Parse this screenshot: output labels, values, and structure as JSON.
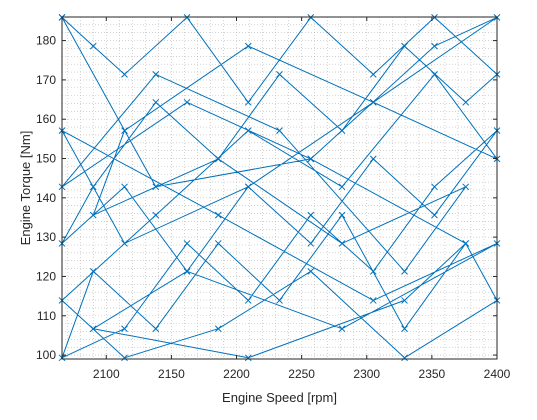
{
  "chart_data": {
    "type": "line",
    "xlabel": "Engine Speed [rpm]",
    "ylabel": "Engine Torque [Nm]",
    "xlim": [
      2066,
      2400
    ],
    "ylim": [
      99,
      186
    ],
    "xticks": [
      2100,
      2150,
      2200,
      2250,
      2300,
      2350,
      2400
    ],
    "yticks": [
      100,
      110,
      120,
      130,
      140,
      150,
      160,
      170,
      180
    ],
    "grid": "minor-dotted",
    "box": true,
    "marker": "x",
    "color": "#0072BD",
    "x_grid_levels": [
      2066,
      2090,
      2114,
      2138,
      2162,
      2186,
      2209,
      2233,
      2257,
      2281,
      2305,
      2329,
      2352,
      2376,
      2400
    ],
    "y_grid_levels": [
      99.3,
      106.4,
      113.6,
      120.7,
      127.9,
      135.0,
      142.1,
      149.3,
      156.4,
      163.6,
      170.7,
      177.9,
      185.9
    ],
    "series": [
      {
        "x": [
          2066,
          2090,
          2114,
          2162,
          2209,
          2257,
          2305,
          2352,
          2400,
          2376,
          2329,
          2281,
          2233,
          2186,
          2138,
          2090,
          2066,
          2114,
          2162,
          2209,
          2257,
          2305,
          2352,
          2400,
          2352,
          2305,
          2257,
          2209,
          2162,
          2114,
          2066,
          2090,
          2138,
          2186,
          2233,
          2281,
          2329,
          2376,
          2400,
          2329,
          2257,
          2186,
          2114,
          2066,
          2138,
          2209,
          2281,
          2352,
          2400,
          2305,
          2209,
          2114,
          2090,
          2186,
          2281,
          2376,
          2329,
          2233,
          2138,
          2066,
          2162,
          2257,
          2352,
          2400,
          2305,
          2209,
          2114,
          2066,
          2186,
          2305,
          2400,
          2281,
          2162,
          2090,
          2209,
          2329,
          2376,
          2257,
          2138,
          2066
        ],
        "y": [
          185.9,
          178.6,
          171.4,
          185.9,
          164.3,
          185.9,
          171.4,
          185.9,
          171.4,
          164.3,
          178.6,
          157.1,
          171.4,
          149.9,
          164.3,
          142.8,
          128.4,
          142.8,
          121.3,
          142.8,
          128.4,
          149.9,
          135.6,
          157.1,
          142.8,
          121.3,
          135.6,
          113.9,
          128.4,
          106.7,
          99.3,
          121.3,
          106.7,
          128.4,
          113.9,
          135.6,
          106.7,
          128.4,
          113.9,
          99.3,
          121.3,
          106.7,
          99.3,
          113.9,
          135.6,
          157.1,
          142.8,
          171.4,
          149.9,
          164.3,
          178.6,
          157.1,
          135.6,
          149.9,
          128.4,
          142.8,
          121.3,
          157.1,
          171.4,
          142.8,
          164.3,
          149.9,
          178.6,
          185.9,
          164.3,
          142.8,
          128.4,
          157.1,
          135.6,
          113.9,
          128.4,
          106.7,
          121.3,
          106.7,
          99.3,
          113.9,
          128.4,
          149.9,
          142.8,
          185.9
        ]
      }
    ]
  }
}
